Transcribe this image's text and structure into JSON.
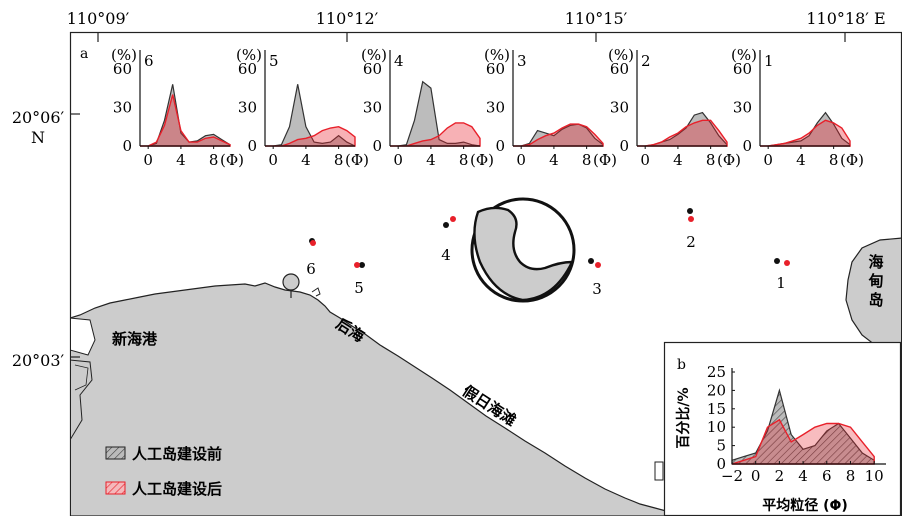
{
  "coords": {
    "top": [
      {
        "label": "110°09′",
        "x": 110.15
      },
      {
        "label": "110°12′",
        "x": 110.2
      },
      {
        "label": "110°15′",
        "x": 110.25
      },
      {
        "label": "110°18′ E",
        "x": 110.3
      }
    ],
    "left": [
      {
        "label": "20°06′",
        "y": 20.1,
        "sub": "N"
      },
      {
        "label": "20°03′",
        "y": 20.05,
        "sub": ""
      }
    ]
  },
  "map": {
    "place_labels": {
      "xinhai": "新海港",
      "houhai": "后海",
      "jiari": "假日海滩",
      "haidian_1": "海",
      "haidian_2": "甸",
      "haidian_3": "岛"
    },
    "legend": {
      "before": "人工岛建设前",
      "after": "人工岛建设后"
    },
    "colors": {
      "before": "#888888",
      "after": "#e8202a",
      "land": "#cccccc"
    },
    "stations": [
      {
        "id": "6",
        "label": "6"
      },
      {
        "id": "5",
        "label": "5"
      },
      {
        "id": "4",
        "label": "4"
      },
      {
        "id": "3",
        "label": "3"
      },
      {
        "id": "2",
        "label": "2"
      },
      {
        "id": "1",
        "label": "1"
      }
    ]
  },
  "panel_a": {
    "tag": "a",
    "ylabel": "(%)",
    "xlabel": "(Φ)",
    "yticks": [
      "60",
      "30",
      "0"
    ],
    "xticks": [
      "0",
      "4",
      "8"
    ]
  },
  "panel_b": {
    "tag": "b",
    "ylabel": "百分比/%",
    "xlabel": "平均粒径 (Φ)",
    "yticks": [
      "25",
      "20",
      "15",
      "10",
      "5",
      "0"
    ],
    "xticks": [
      "−2",
      "0",
      "2",
      "4",
      "6",
      "8",
      "10"
    ]
  },
  "chart_data": [
    {
      "type": "area",
      "title": "6",
      "x": [
        -1,
        0,
        1,
        2,
        3,
        4,
        5,
        6,
        7,
        8,
        9,
        10
      ],
      "xlim": [
        -1,
        10
      ],
      "ylim": [
        0,
        70
      ],
      "series": [
        {
          "name": "人工岛建设前",
          "values": [
            0,
            0,
            2,
            20,
            48,
            10,
            3,
            4,
            8,
            9,
            5,
            1
          ]
        },
        {
          "name": "人工岛建设后",
          "values": [
            0,
            0,
            3,
            16,
            40,
            12,
            3,
            3,
            6,
            7,
            4,
            1
          ]
        }
      ]
    },
    {
      "type": "area",
      "title": "5",
      "x": [
        -1,
        0,
        1,
        2,
        3,
        4,
        5,
        6,
        7,
        8,
        9,
        10
      ],
      "xlim": [
        -1,
        10
      ],
      "ylim": [
        0,
        70
      ],
      "series": [
        {
          "name": "人工岛建设前",
          "values": [
            0,
            0,
            1,
            15,
            48,
            15,
            3,
            2,
            3,
            8,
            3,
            0
          ]
        },
        {
          "name": "人工岛建设后",
          "values": [
            0,
            0,
            0,
            2,
            5,
            6,
            8,
            12,
            14,
            15,
            12,
            7
          ]
        }
      ]
    },
    {
      "type": "area",
      "title": "4",
      "x": [
        -1,
        0,
        1,
        2,
        3,
        4,
        5,
        6,
        7,
        8,
        9,
        10
      ],
      "xlim": [
        -1,
        10
      ],
      "ylim": [
        0,
        70
      ],
      "series": [
        {
          "name": "人工岛建设前",
          "values": [
            0,
            0,
            1,
            20,
            50,
            45,
            5,
            2,
            2,
            3,
            1,
            0
          ]
        },
        {
          "name": "人工岛建设后",
          "values": [
            0,
            0,
            0,
            2,
            4,
            5,
            8,
            14,
            18,
            18,
            15,
            6
          ]
        }
      ]
    },
    {
      "type": "area",
      "title": "3",
      "x": [
        -1,
        0,
        1,
        2,
        3,
        4,
        5,
        6,
        7,
        8,
        9,
        10
      ],
      "xlim": [
        -1,
        10
      ],
      "ylim": [
        0,
        70
      ],
      "series": [
        {
          "name": "人工岛建设前",
          "values": [
            0,
            0,
            2,
            12,
            10,
            8,
            13,
            16,
            17,
            14,
            6,
            1
          ]
        },
        {
          "name": "人工岛建设后",
          "values": [
            0,
            0,
            1,
            5,
            8,
            10,
            14,
            17,
            17,
            15,
            9,
            2
          ]
        }
      ]
    },
    {
      "type": "area",
      "title": "2",
      "x": [
        -1,
        0,
        1,
        2,
        3,
        4,
        5,
        6,
        7,
        8,
        9,
        10
      ],
      "xlim": [
        -1,
        10
      ],
      "ylim": [
        0,
        70
      ],
      "series": [
        {
          "name": "人工岛建设前",
          "values": [
            0,
            0,
            1,
            3,
            5,
            9,
            14,
            24,
            26,
            18,
            8,
            1
          ]
        },
        {
          "name": "人工岛建设后",
          "values": [
            0,
            0,
            1,
            3,
            7,
            10,
            15,
            18,
            20,
            20,
            12,
            3
          ]
        }
      ]
    },
    {
      "type": "area",
      "title": "1",
      "x": [
        -1,
        0,
        1,
        2,
        3,
        4,
        5,
        6,
        7,
        8,
        9,
        10
      ],
      "xlim": [
        -1,
        10
      ],
      "ylim": [
        0,
        70
      ],
      "series": [
        {
          "name": "人工岛建设前",
          "values": [
            0,
            0,
            1,
            2,
            3,
            4,
            8,
            18,
            26,
            17,
            6,
            1
          ]
        },
        {
          "name": "人工岛建设后",
          "values": [
            0,
            0,
            1,
            2,
            4,
            6,
            10,
            16,
            20,
            18,
            14,
            4
          ]
        }
      ]
    },
    {
      "type": "area",
      "title": "",
      "xlabel": "平均粒径 (Φ)",
      "ylabel": "百分比/%",
      "x": [
        -2,
        -1,
        0,
        1,
        2,
        3,
        4,
        5,
        6,
        7,
        8,
        9,
        10
      ],
      "xlim": [
        -2,
        11
      ],
      "ylim": [
        0,
        25
      ],
      "series": [
        {
          "name": "人工岛建设前",
          "values": [
            1,
            2,
            3,
            9,
            20,
            8,
            4,
            5,
            9,
            11,
            7,
            3,
            1
          ]
        },
        {
          "name": "人工岛建设后",
          "values": [
            0,
            1,
            2,
            10,
            12,
            6,
            8,
            10,
            11,
            11,
            10,
            6,
            2
          ]
        }
      ]
    }
  ]
}
